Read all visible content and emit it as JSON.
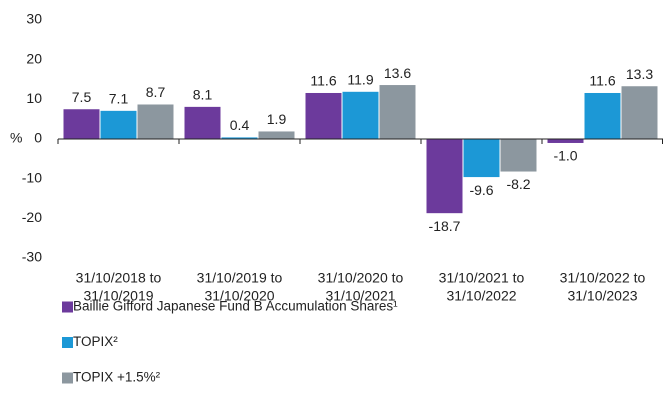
{
  "chart_data": {
    "type": "bar",
    "ylabel": "%",
    "categories": [
      [
        "31/10/2018 to",
        "31/10/2019"
      ],
      [
        "31/10/2019 to",
        "31/10/2020"
      ],
      [
        "31/10/2020 to",
        "31/10/2021"
      ],
      [
        "31/10/2021 to",
        "31/10/2022"
      ],
      [
        "31/10/2022 to",
        "31/10/2023"
      ]
    ],
    "series": [
      {
        "name": "Baillie Gifford Japanese Fund B Accumulation Shares¹",
        "color": "#6c3a9c",
        "values": [
          7.5,
          8.1,
          11.6,
          -18.7,
          -1.0
        ],
        "value_labels": [
          "7.5",
          "8.1",
          "11.6",
          "-18.7",
          "-1.0"
        ]
      },
      {
        "name": "TOPIX²",
        "color": "#1c98d6",
        "values": [
          7.1,
          0.4,
          11.9,
          -9.6,
          11.6
        ],
        "value_labels": [
          "7.1",
          "0.4",
          "11.9",
          "-9.6",
          "11.6"
        ]
      },
      {
        "name": "TOPIX +1.5%²",
        "color": "#8c979f",
        "values": [
          8.7,
          1.9,
          13.6,
          -8.2,
          13.3
        ],
        "value_labels": [
          "8.7",
          "1.9",
          "13.6",
          "-8.2",
          "13.3"
        ]
      }
    ],
    "ylim": [
      -30,
      30
    ],
    "yticks": [
      -30,
      -20,
      -10,
      0,
      10,
      20,
      30
    ],
    "grid": false
  }
}
